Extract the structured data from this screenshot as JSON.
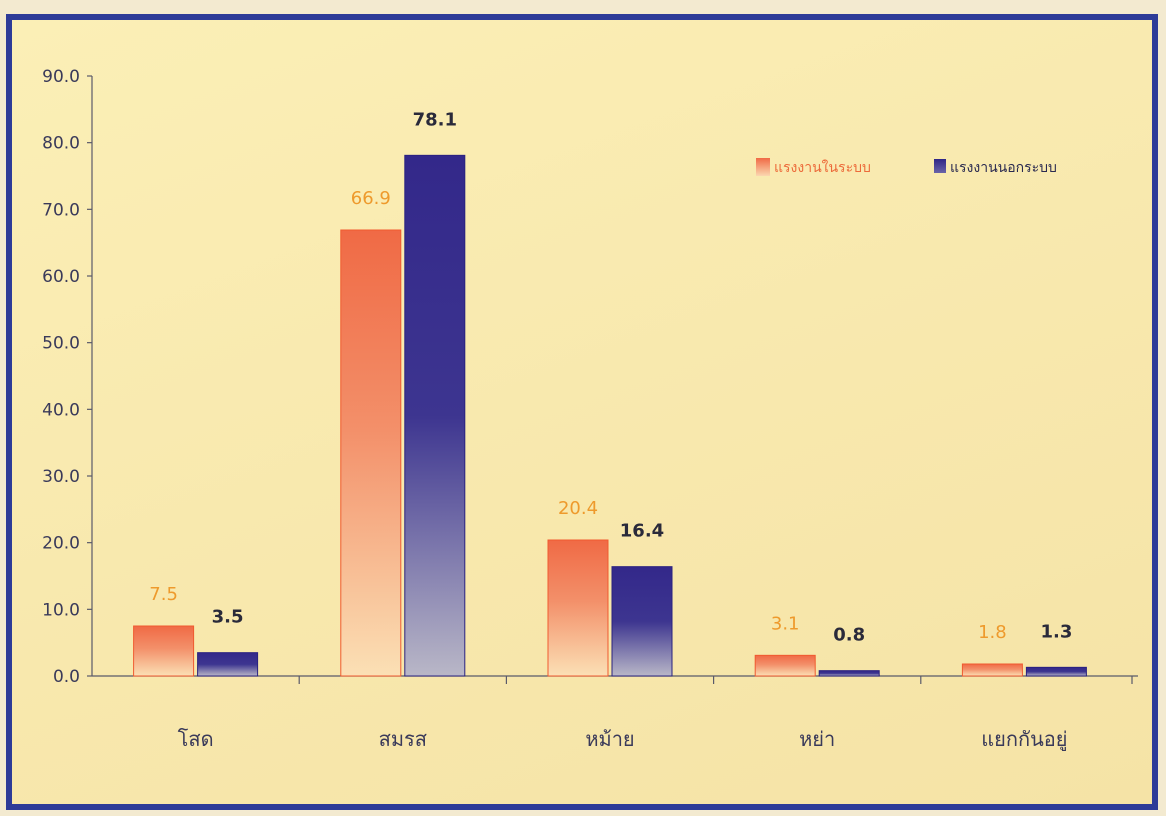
{
  "chart_data": {
    "type": "bar",
    "categories": [
      "โสด",
      "สมรส",
      "หม้าย",
      "หย่า",
      "แยกกันอยู่"
    ],
    "series": [
      {
        "name": "แรงงานในระบบ",
        "values": [
          7.5,
          66.9,
          20.4,
          3.1,
          1.8
        ],
        "color": "#ef7a50"
      },
      {
        "name": "แรงงานนอกระบบ",
        "values": [
          3.5,
          78.1,
          16.4,
          0.8,
          1.3
        ],
        "color": "#3a2e8f"
      }
    ],
    "yticks": [
      "0.0",
      "10.0",
      "20.0",
      "30.0",
      "40.0",
      "50.0",
      "60.0",
      "70.0",
      "80.0",
      "90.0"
    ],
    "ylim": [
      0,
      90
    ],
    "legend_position": "top-right",
    "grid": false,
    "colors": {
      "border": "#2d3b98",
      "background": "#fbefb6",
      "label_a": "#ee9a2c"
    }
  }
}
